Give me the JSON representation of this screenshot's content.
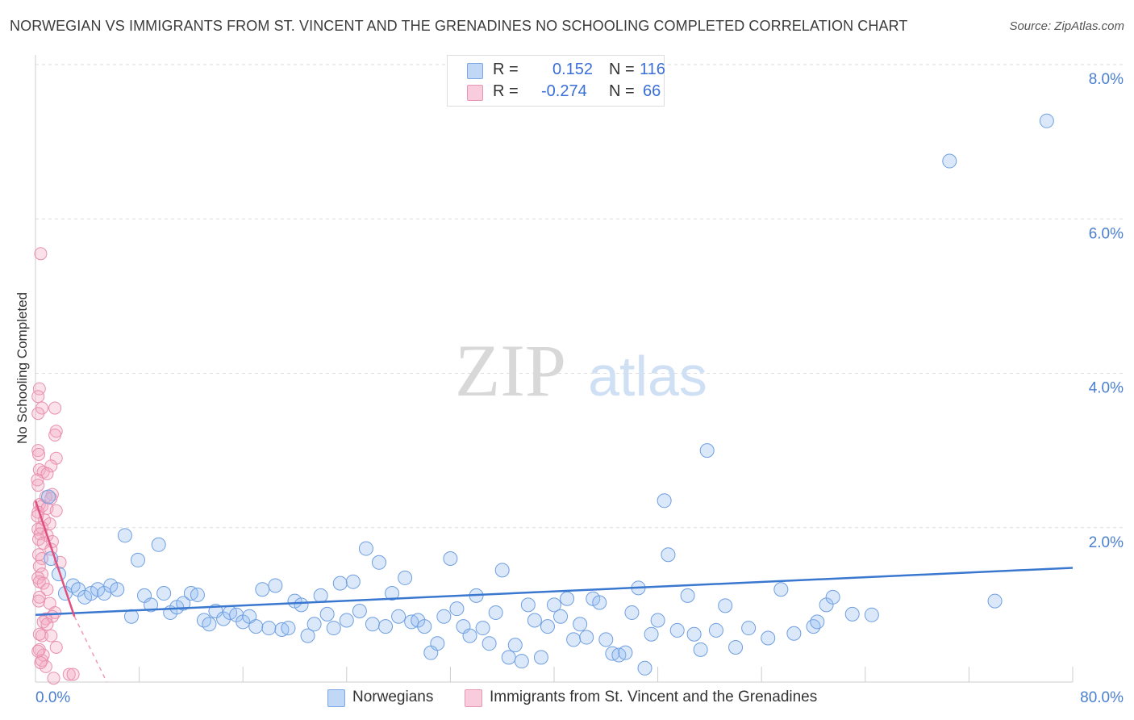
{
  "title": "NORWEGIAN VS IMMIGRANTS FROM ST. VINCENT AND THE GRENADINES NO SCHOOLING COMPLETED CORRELATION CHART",
  "source": "Source: ZipAtlas.com",
  "watermark": {
    "zip": "ZIP",
    "atlas": "atlas"
  },
  "legend_top": {
    "rows": [
      {
        "r_label": "R =",
        "r_value": "0.152",
        "n_label": "N =",
        "n_value": "116",
        "color": "#9fc3f0"
      },
      {
        "r_label": "R =",
        "r_value": "-0.274",
        "n_label": "N =",
        "n_value": "66",
        "color": "#f4b3c8"
      }
    ]
  },
  "legend_bottom": [
    {
      "label": "Norwegians",
      "color": "#9fc3f0"
    },
    {
      "label": "Immigrants from St. Vincent and the Grenadines",
      "color": "#f4b3c8"
    }
  ],
  "colors": {
    "blue": "#3a78d0",
    "blue_fill": "rgba(150,190,240,0.35)",
    "pink": "#e0507e",
    "pink_fill": "rgba(244,170,196,0.35)",
    "tick_text": "#4a7fd0",
    "grid": "#dddddd"
  },
  "chart_data": {
    "type": "scatter",
    "xlabel": "",
    "ylabel": "No Schooling Completed",
    "xlim": [
      0,
      80
    ],
    "ylim": [
      0,
      8.0
    ],
    "x_tick_labels": [
      "0.0%",
      "80.0%"
    ],
    "y_ticks": [
      2.0,
      4.0,
      6.0,
      8.0
    ],
    "y_tick_labels": [
      "2.0%",
      "4.0%",
      "6.0%",
      "8.0%"
    ],
    "grid": "horizontal dashed",
    "series": [
      {
        "name": "Norwegians",
        "trend": {
          "x": [
            0,
            80
          ],
          "y": [
            0.87,
            1.48
          ]
        },
        "points": [
          [
            1.0,
            2.4
          ],
          [
            1.2,
            1.6
          ],
          [
            1.8,
            1.4
          ],
          [
            2.3,
            1.15
          ],
          [
            2.9,
            1.25
          ],
          [
            3.3,
            1.2
          ],
          [
            3.8,
            1.1
          ],
          [
            4.3,
            1.15
          ],
          [
            4.8,
            1.2
          ],
          [
            5.3,
            1.15
          ],
          [
            5.8,
            1.25
          ],
          [
            6.3,
            1.2
          ],
          [
            6.9,
            1.9
          ],
          [
            7.4,
            0.85
          ],
          [
            7.9,
            1.58
          ],
          [
            8.4,
            1.12
          ],
          [
            8.9,
            1.0
          ],
          [
            9.5,
            1.78
          ],
          [
            9.9,
            1.15
          ],
          [
            10.4,
            0.9
          ],
          [
            10.9,
            0.97
          ],
          [
            11.4,
            1.02
          ],
          [
            12.0,
            1.15
          ],
          [
            12.5,
            1.13
          ],
          [
            13.0,
            0.8
          ],
          [
            13.4,
            0.75
          ],
          [
            13.9,
            0.92
          ],
          [
            14.5,
            0.82
          ],
          [
            15.0,
            0.9
          ],
          [
            15.5,
            0.87
          ],
          [
            16.0,
            0.78
          ],
          [
            16.5,
            0.85
          ],
          [
            17.0,
            0.72
          ],
          [
            17.5,
            1.2
          ],
          [
            18.0,
            0.7
          ],
          [
            18.5,
            1.25
          ],
          [
            19.0,
            0.68
          ],
          [
            19.5,
            0.7
          ],
          [
            20.0,
            1.05
          ],
          [
            20.5,
            1.0
          ],
          [
            21.0,
            0.6
          ],
          [
            21.5,
            0.75
          ],
          [
            22.0,
            1.12
          ],
          [
            22.5,
            0.88
          ],
          [
            23.0,
            0.7
          ],
          [
            23.5,
            1.28
          ],
          [
            24.0,
            0.8
          ],
          [
            24.5,
            1.3
          ],
          [
            25.0,
            0.92
          ],
          [
            25.5,
            1.73
          ],
          [
            26.0,
            0.75
          ],
          [
            26.5,
            1.55
          ],
          [
            27.0,
            0.72
          ],
          [
            27.5,
            1.15
          ],
          [
            28.0,
            0.85
          ],
          [
            28.5,
            1.35
          ],
          [
            29.0,
            0.78
          ],
          [
            29.5,
            0.8
          ],
          [
            30.0,
            0.72
          ],
          [
            30.5,
            0.38
          ],
          [
            31.0,
            0.5
          ],
          [
            31.5,
            0.85
          ],
          [
            32.0,
            1.6
          ],
          [
            32.5,
            0.95
          ],
          [
            33.0,
            0.72
          ],
          [
            33.5,
            0.6
          ],
          [
            34.0,
            1.12
          ],
          [
            34.5,
            0.7
          ],
          [
            35.0,
            0.5
          ],
          [
            35.5,
            0.9
          ],
          [
            36.0,
            1.45
          ],
          [
            36.5,
            0.32
          ],
          [
            37.0,
            0.48
          ],
          [
            37.5,
            0.27
          ],
          [
            38.0,
            1.0
          ],
          [
            38.5,
            0.8
          ],
          [
            39.0,
            0.32
          ],
          [
            39.5,
            0.72
          ],
          [
            40.0,
            1.0
          ],
          [
            40.5,
            0.85
          ],
          [
            41.0,
            1.08
          ],
          [
            41.5,
            0.55
          ],
          [
            42.0,
            0.75
          ],
          [
            42.5,
            0.58
          ],
          [
            43.0,
            1.08
          ],
          [
            43.5,
            1.03
          ],
          [
            44.0,
            0.55
          ],
          [
            44.5,
            0.37
          ],
          [
            45.0,
            0.35
          ],
          [
            45.5,
            0.38
          ],
          [
            46.0,
            0.9
          ],
          [
            46.5,
            1.22
          ],
          [
            47.0,
            0.18
          ],
          [
            47.5,
            0.62
          ],
          [
            48.0,
            0.8
          ],
          [
            48.5,
            2.35
          ],
          [
            48.8,
            1.65
          ],
          [
            49.5,
            0.67
          ],
          [
            50.3,
            1.12
          ],
          [
            50.8,
            0.62
          ],
          [
            51.3,
            0.42
          ],
          [
            51.8,
            3.0
          ],
          [
            52.5,
            0.67
          ],
          [
            53.2,
            0.99
          ],
          [
            54.0,
            0.45
          ],
          [
            55.0,
            0.7
          ],
          [
            56.5,
            0.57
          ],
          [
            57.5,
            1.2
          ],
          [
            58.5,
            0.63
          ],
          [
            60.0,
            0.72
          ],
          [
            60.3,
            0.78
          ],
          [
            61.0,
            1.0
          ],
          [
            61.5,
            1.1
          ],
          [
            63.0,
            0.88
          ],
          [
            64.5,
            0.87
          ],
          [
            70.5,
            6.75
          ],
          [
            74.0,
            1.05
          ],
          [
            78.0,
            7.27
          ]
        ]
      },
      {
        "name": "Immigrants from St. Vincent and the Grenadines",
        "trend": {
          "x": [
            0,
            3.0
          ],
          "y": [
            2.35,
            0.85
          ]
        },
        "trend_dashed": {
          "x": [
            3.0,
            5.5
          ],
          "y": [
            0.85,
            0.0
          ]
        },
        "points": [
          [
            0.4,
            5.55
          ],
          [
            0.3,
            3.8
          ],
          [
            0.2,
            3.7
          ],
          [
            0.5,
            3.55
          ],
          [
            1.5,
            3.55
          ],
          [
            0.2,
            3.48
          ],
          [
            1.6,
            3.25
          ],
          [
            1.5,
            3.2
          ],
          [
            0.2,
            3.0
          ],
          [
            0.25,
            2.95
          ],
          [
            1.6,
            2.9
          ],
          [
            1.2,
            2.8
          ],
          [
            0.3,
            2.75
          ],
          [
            0.6,
            2.72
          ],
          [
            0.9,
            2.7
          ],
          [
            0.15,
            2.62
          ],
          [
            0.2,
            2.55
          ],
          [
            1.3,
            2.43
          ],
          [
            0.8,
            2.4
          ],
          [
            1.2,
            2.38
          ],
          [
            0.3,
            2.3
          ],
          [
            0.5,
            2.28
          ],
          [
            0.9,
            2.25
          ],
          [
            1.6,
            2.22
          ],
          [
            0.2,
            2.2
          ],
          [
            0.15,
            2.15
          ],
          [
            0.7,
            2.1
          ],
          [
            1.1,
            2.05
          ],
          [
            0.5,
            2.0
          ],
          [
            0.2,
            1.98
          ],
          [
            0.35,
            1.92
          ],
          [
            0.9,
            1.9
          ],
          [
            0.25,
            1.85
          ],
          [
            1.3,
            1.82
          ],
          [
            0.6,
            1.8
          ],
          [
            1.2,
            1.72
          ],
          [
            0.25,
            1.65
          ],
          [
            0.5,
            1.6
          ],
          [
            1.9,
            1.55
          ],
          [
            0.3,
            1.5
          ],
          [
            0.5,
            1.4
          ],
          [
            0.2,
            1.35
          ],
          [
            0.3,
            1.3
          ],
          [
            0.6,
            1.28
          ],
          [
            0.9,
            1.2
          ],
          [
            0.3,
            1.1
          ],
          [
            0.25,
            1.05
          ],
          [
            1.1,
            1.02
          ],
          [
            1.5,
            0.9
          ],
          [
            1.3,
            0.85
          ],
          [
            0.8,
            0.82
          ],
          [
            0.6,
            0.78
          ],
          [
            0.5,
            0.6
          ],
          [
            1.6,
            0.45
          ],
          [
            0.3,
            0.42
          ],
          [
            0.6,
            0.35
          ],
          [
            0.5,
            0.28
          ],
          [
            0.8,
            0.2
          ],
          [
            0.4,
            0.25
          ],
          [
            2.6,
            0.1
          ],
          [
            2.9,
            0.1
          ],
          [
            0.3,
            0.62
          ],
          [
            0.9,
            0.75
          ],
          [
            1.2,
            0.6
          ],
          [
            0.2,
            0.4
          ],
          [
            1.4,
            0.05
          ]
        ]
      }
    ]
  }
}
